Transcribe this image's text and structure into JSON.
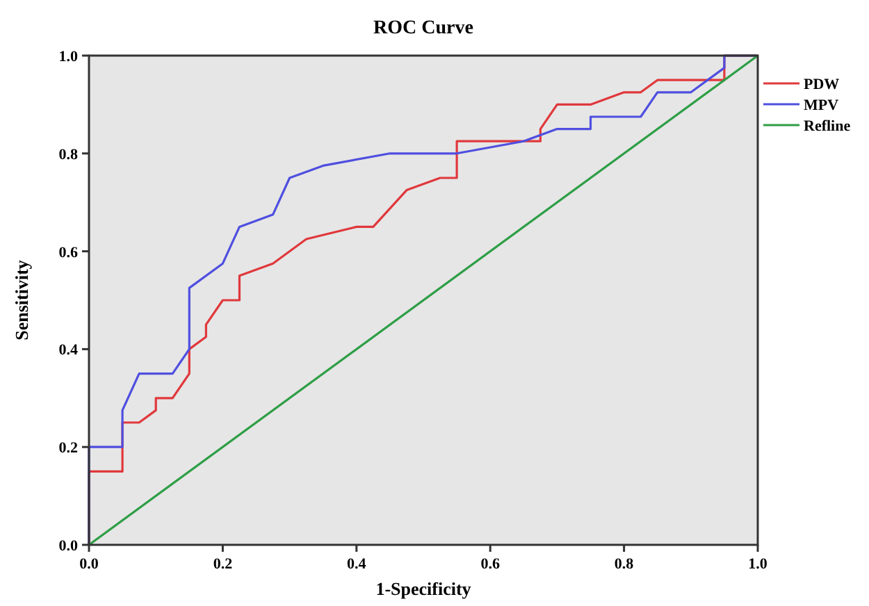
{
  "chart_data": {
    "type": "line",
    "title": "ROC Curve",
    "xlabel": "1-Specificity",
    "ylabel": "Sensitivity",
    "xlim": [
      0,
      1
    ],
    "ylim": [
      0,
      1
    ],
    "xticks": [
      {
        "value": 0,
        "label": "0.0"
      },
      {
        "value": 0.2,
        "label": "0.2"
      },
      {
        "value": 0.4,
        "label": "0.4"
      },
      {
        "value": 0.6,
        "label": "0.6"
      },
      {
        "value": 0.8,
        "label": "0.8"
      },
      {
        "value": 1,
        "label": "1.0"
      }
    ],
    "yticks": [
      {
        "value": 0,
        "label": "0.0"
      },
      {
        "value": 0.2,
        "label": "0.2"
      },
      {
        "value": 0.4,
        "label": "0.4"
      },
      {
        "value": 0.6,
        "label": "0.6"
      },
      {
        "value": 0.8,
        "label": "0.8"
      },
      {
        "value": 1,
        "label": "1.0"
      }
    ],
    "legend": "right",
    "grid": false,
    "marker": "none",
    "series": [
      {
        "name": "PDW",
        "color": "#e0383c",
        "x": [
          0,
          0,
          0.05,
          0.05,
          0.075,
          0.1,
          0.1,
          0.125,
          0.15,
          0.15,
          0.175,
          0.175,
          0.2,
          0.225,
          0.225,
          0.275,
          0.325,
          0.4,
          0.425,
          0.475,
          0.525,
          0.55,
          0.55,
          0.675,
          0.675,
          0.7,
          0.75,
          0.8,
          0.825,
          0.85,
          0.95,
          0.95,
          1
        ],
        "values": [
          0,
          0.15,
          0.15,
          0.25,
          0.25,
          0.275,
          0.3,
          0.3,
          0.35,
          0.4,
          0.425,
          0.45,
          0.5,
          0.5,
          0.55,
          0.575,
          0.625,
          0.65,
          0.65,
          0.725,
          0.75,
          0.75,
          0.825,
          0.825,
          0.85,
          0.9,
          0.9,
          0.925,
          0.925,
          0.95,
          0.95,
          1,
          1
        ]
      },
      {
        "name": "MPV",
        "color": "#4f4fe0",
        "x": [
          0,
          0,
          0.05,
          0.05,
          0.075,
          0.125,
          0.15,
          0.15,
          0.2,
          0.225,
          0.275,
          0.3,
          0.35,
          0.45,
          0.55,
          0.65,
          0.7,
          0.75,
          0.75,
          0.825,
          0.85,
          0.9,
          0.95,
          0.95,
          1
        ],
        "values": [
          0,
          0.2,
          0.2,
          0.275,
          0.35,
          0.35,
          0.4,
          0.525,
          0.575,
          0.65,
          0.675,
          0.75,
          0.775,
          0.8,
          0.8,
          0.825,
          0.85,
          0.85,
          0.875,
          0.875,
          0.925,
          0.925,
          0.975,
          1,
          1
        ]
      },
      {
        "name": "Refline",
        "color": "#2e9e46",
        "x": [
          0,
          1
        ],
        "values": [
          0,
          1
        ]
      }
    ]
  }
}
